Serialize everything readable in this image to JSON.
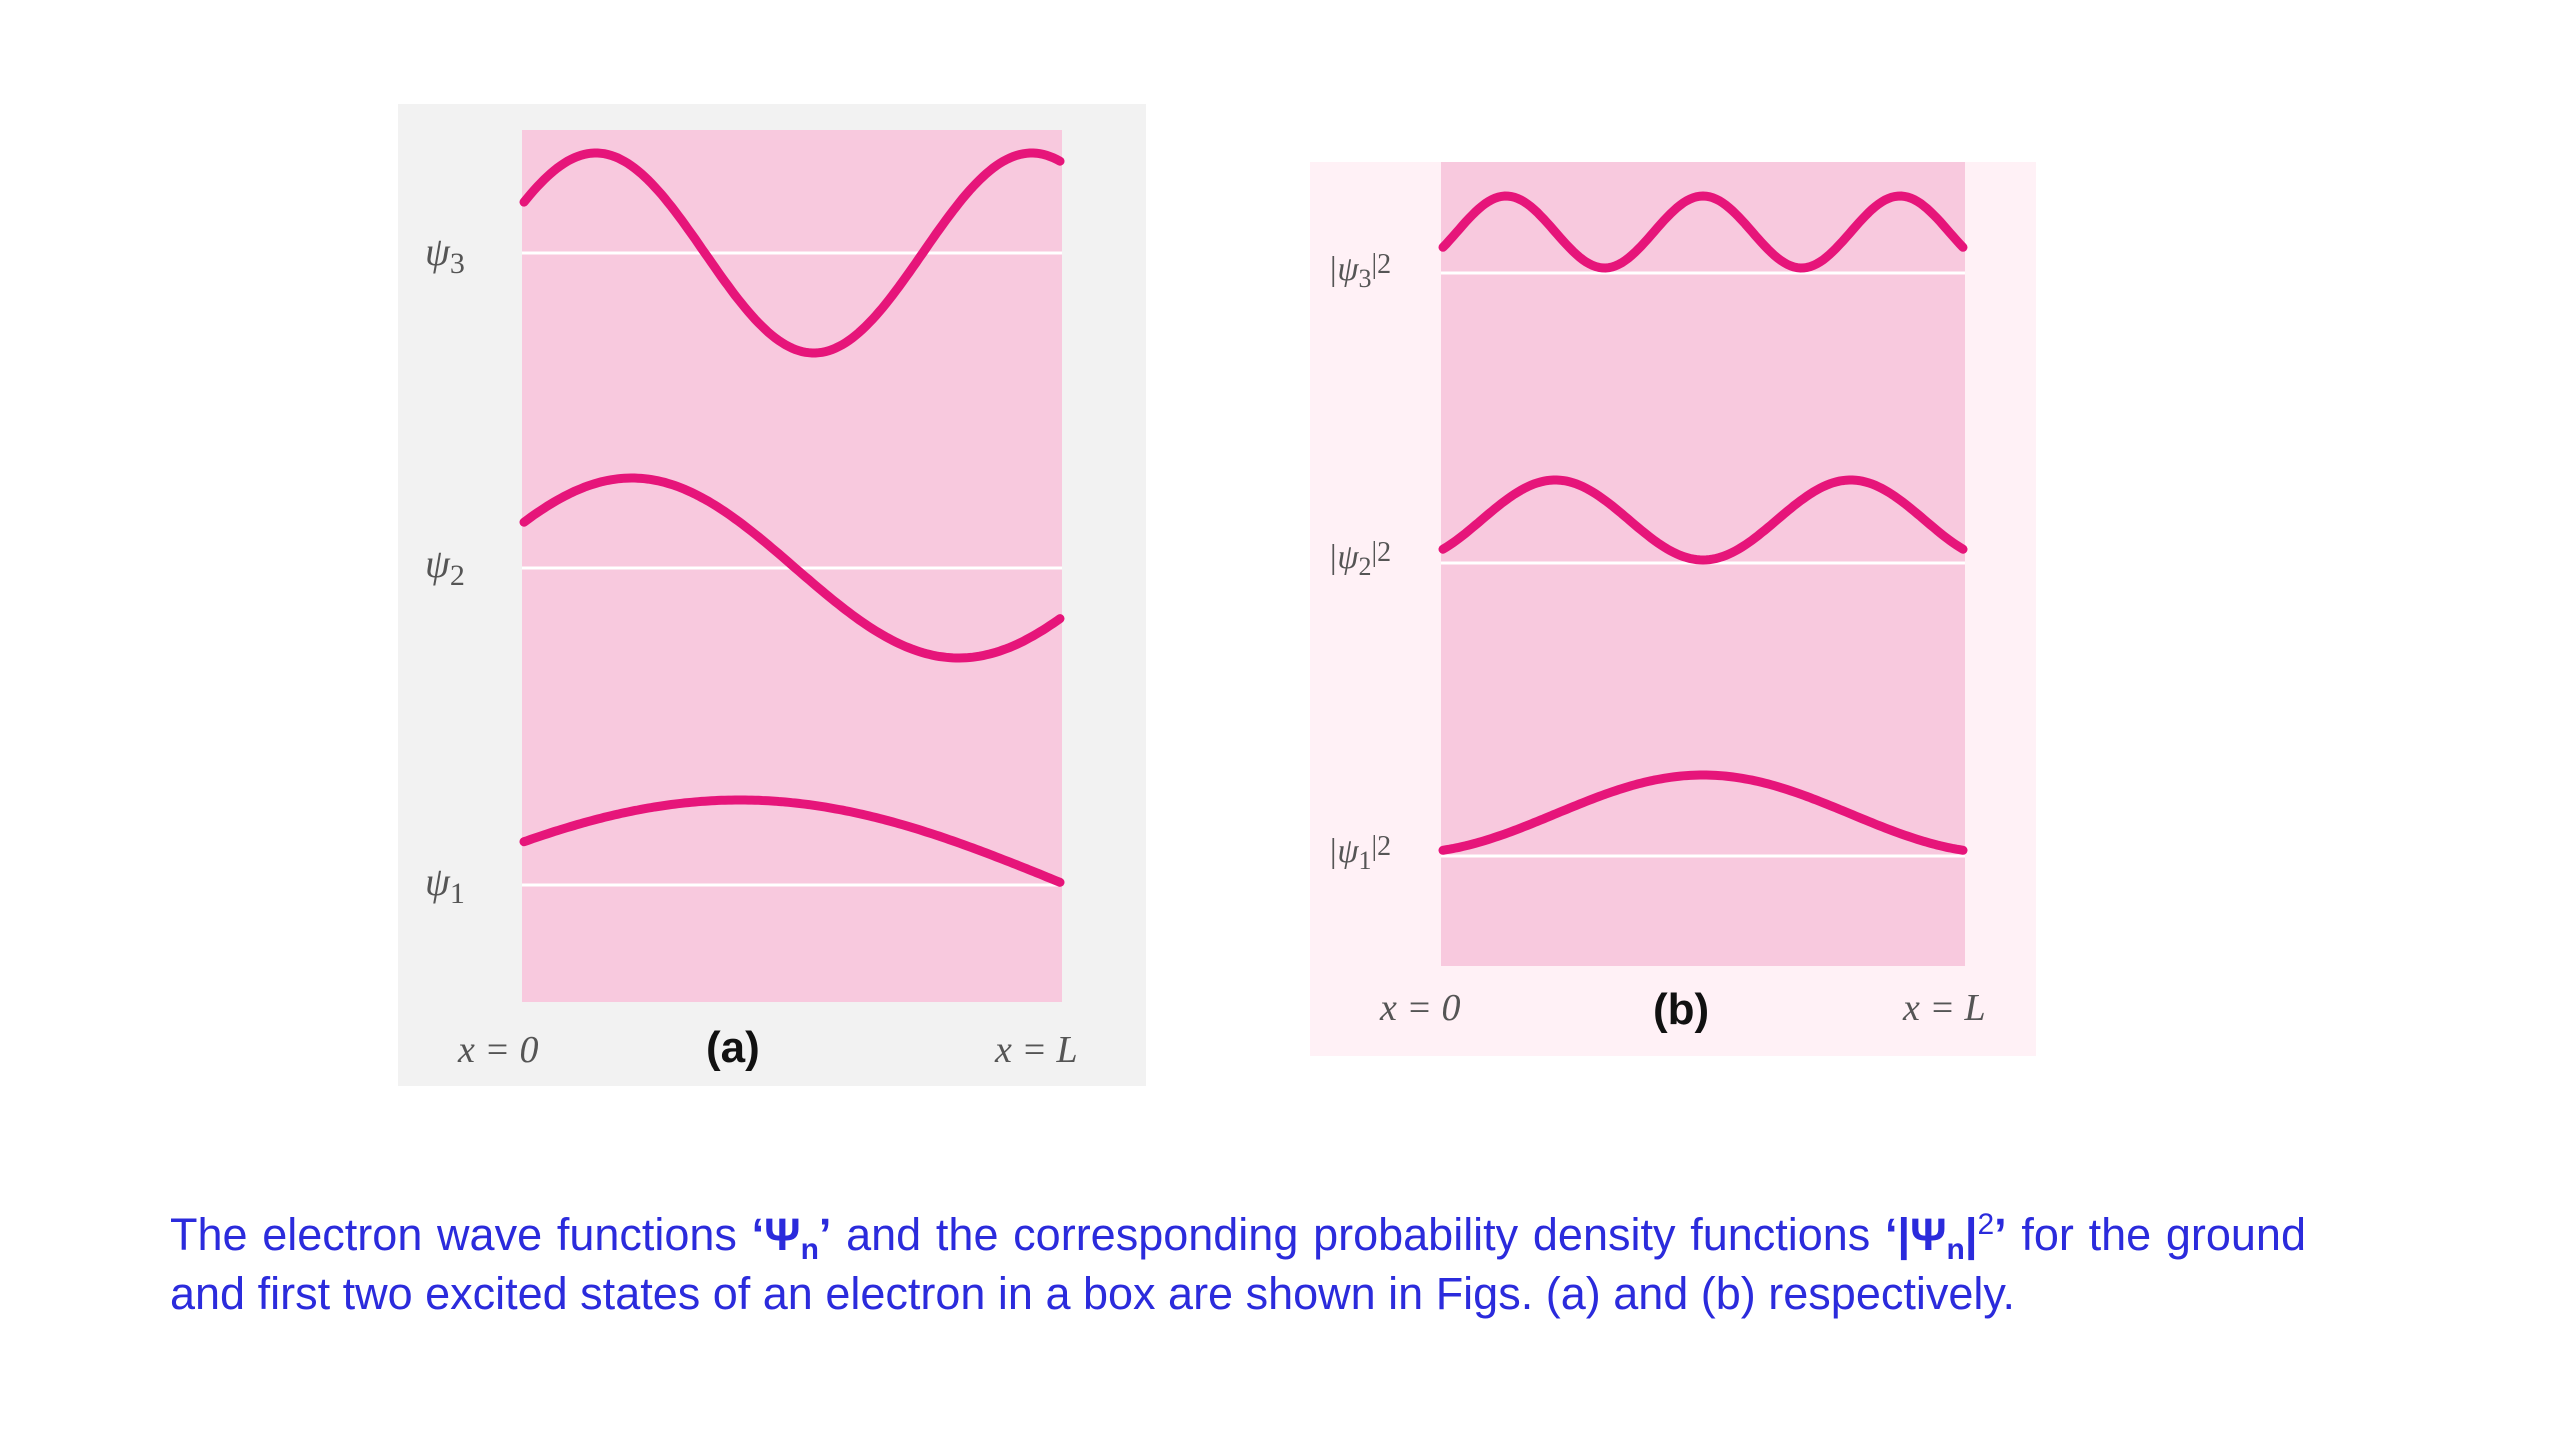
{
  "panel_a": {
    "letter": "(a)",
    "x_left": "x = 0",
    "x_right": "x = L",
    "colors": {
      "outer_bg": "#f2f2f2",
      "plot_bg": "#f8c9de",
      "curve": "#e6157a",
      "baseline": "#ffffff"
    },
    "curves": [
      {
        "label_main": "ψ",
        "label_sub": "3",
        "n": 3,
        "kind": "wave"
      },
      {
        "label_main": "ψ",
        "label_sub": "2",
        "n": 2,
        "kind": "wave"
      },
      {
        "label_main": "ψ",
        "label_sub": "1",
        "n": 1,
        "kind": "wave"
      }
    ]
  },
  "panel_b": {
    "letter": "(b)",
    "x_left": "x = 0",
    "x_right": "x = L",
    "colors": {
      "outer_bg": "#fff1f6",
      "plot_bg": "#f8c9de",
      "curve": "#e6157a",
      "baseline": "#ffffff"
    },
    "curves": [
      {
        "label_pre": "|ψ",
        "label_sub": "3",
        "label_post": "|2",
        "n": 3,
        "kind": "density"
      },
      {
        "label_pre": "|ψ",
        "label_sub": "2",
        "label_post": "|2",
        "n": 2,
        "kind": "density"
      },
      {
        "label_pre": "|ψ",
        "label_sub": "1",
        "label_post": "|2",
        "n": 1,
        "kind": "density"
      }
    ]
  },
  "caption": {
    "t1": "The electron wave functions ",
    "psi_open": "‘Ψ",
    "psi_sub": "n",
    "psi_close": "’",
    "t2": " and the corresponding probability density functions ",
    "dens_open": "‘|Ψ",
    "dens_sub": "n",
    "dens_bar": "|",
    "dens_sup": "2",
    "dens_close": "’",
    "t3": " for the ground and first two excited states of an electron in a box are shown in Figs. (a) and (b) respectively."
  }
}
